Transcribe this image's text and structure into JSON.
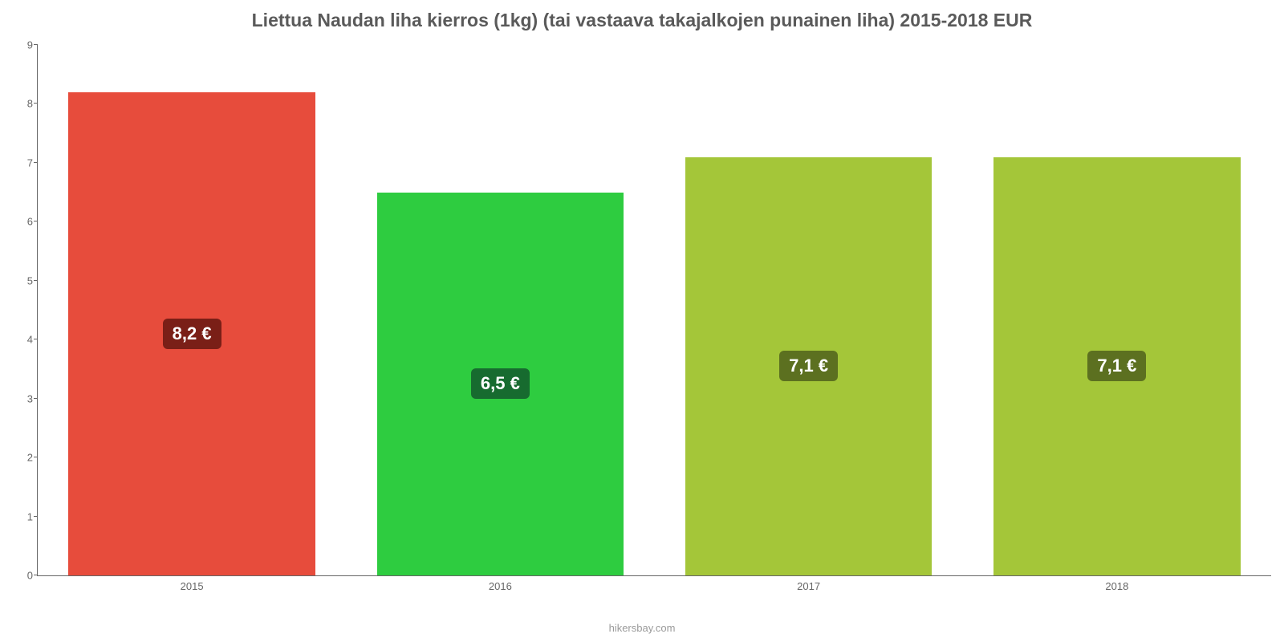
{
  "chart": {
    "type": "bar",
    "title": "Liettua Naudan liha kierros (1kg) (tai vastaava takajalkojen punainen liha) 2015-2018 EUR",
    "title_fontsize": 23,
    "title_color": "#5a5a5a",
    "categories": [
      "2015",
      "2016",
      "2017",
      "2018"
    ],
    "values": [
      8.2,
      6.5,
      7.1,
      7.1
    ],
    "value_labels": [
      "8,2 €",
      "6,5 €",
      "7,1 €",
      "7,1 €"
    ],
    "bar_colors": [
      "#e74c3c",
      "#2ecc40",
      "#a4c639",
      "#a4c639"
    ],
    "badge_colors": [
      "#7a1f17",
      "#176b2f",
      "#5c7020",
      "#5c7020"
    ],
    "badge_fontsize": 22,
    "ylim": [
      0,
      9
    ],
    "yticks": [
      0,
      1,
      2,
      3,
      4,
      5,
      6,
      7,
      8,
      9
    ],
    "axis_color": "#666666",
    "tick_label_color": "#666666",
    "tick_label_fontsize": 13,
    "background_color": "#ffffff",
    "bar_width_pct": 80,
    "source": "hikersbay.com",
    "source_color": "#9a9a9a",
    "source_fontsize": 13
  }
}
